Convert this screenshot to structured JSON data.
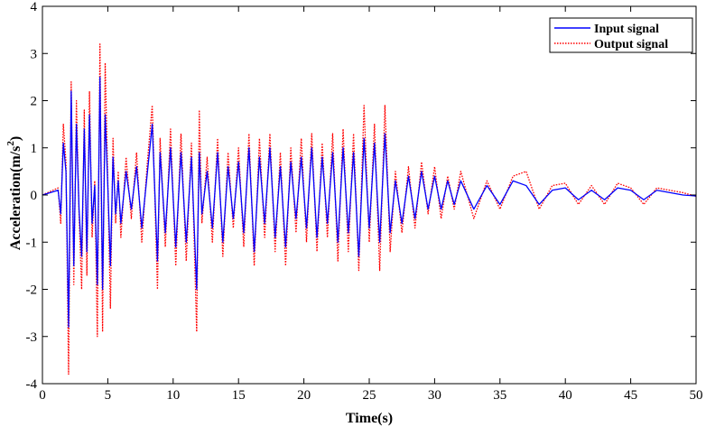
{
  "chart_data": {
    "type": "line",
    "xlabel": "Time(s)",
    "ylabel_main": "Acceleration(m/s",
    "ylabel_sup": "2",
    "ylabel_close": ")",
    "xlim": [
      0,
      50
    ],
    "ylim": [
      -4,
      4
    ],
    "xticks": [
      0,
      5,
      10,
      15,
      20,
      25,
      30,
      35,
      40,
      45,
      50
    ],
    "yticks": [
      -4,
      -3,
      -2,
      -1,
      0,
      1,
      2,
      3,
      4
    ],
    "grid": false,
    "legend_position": "top-right",
    "series": [
      {
        "name": "Input signal",
        "color": "#0000ff",
        "style": "solid",
        "x": [
          0,
          1.2,
          1.4,
          1.6,
          1.8,
          2.0,
          2.2,
          2.4,
          2.6,
          2.8,
          3.0,
          3.2,
          3.4,
          3.6,
          3.8,
          4.0,
          4.2,
          4.4,
          4.6,
          4.8,
          5.0,
          5.2,
          5.4,
          5.6,
          5.8,
          6.0,
          6.4,
          6.8,
          7.2,
          7.6,
          8.0,
          8.4,
          8.8,
          9.0,
          9.4,
          9.8,
          10.2,
          10.6,
          11.0,
          11.4,
          11.8,
          12.0,
          12.2,
          12.6,
          13.0,
          13.4,
          13.8,
          14.2,
          14.6,
          15.0,
          15.4,
          15.8,
          16.2,
          16.6,
          17.0,
          17.4,
          17.8,
          18.2,
          18.6,
          19.0,
          19.4,
          19.8,
          20.2,
          20.6,
          21.0,
          21.4,
          21.8,
          22.2,
          22.6,
          23.0,
          23.4,
          23.8,
          24.2,
          24.6,
          25.0,
          25.4,
          25.8,
          26.2,
          26.6,
          27.0,
          27.5,
          28.0,
          28.5,
          29.0,
          29.5,
          30.0,
          30.5,
          31.0,
          31.5,
          32.0,
          33.0,
          34.0,
          35.0,
          36.0,
          37.0,
          38.0,
          39.0,
          40.0,
          41.0,
          42.0,
          43.0,
          44.0,
          45.0,
          46.0,
          47.0,
          48.0,
          49.0,
          50.0
        ],
        "y": [
          0,
          0.1,
          -0.4,
          1.1,
          0.5,
          -2.8,
          2.2,
          -1.5,
          1.5,
          -0.3,
          -1.3,
          1.4,
          -1.2,
          1.7,
          -0.6,
          0.2,
          -1.9,
          2.5,
          -2.0,
          1.7,
          0.2,
          -1.5,
          0.8,
          -0.4,
          0.3,
          -0.6,
          0.5,
          -0.3,
          0.6,
          -0.7,
          0.4,
          1.5,
          -1.4,
          0.9,
          -0.8,
          1.0,
          -1.1,
          0.9,
          -1.0,
          0.8,
          -2.0,
          0.9,
          -0.4,
          0.5,
          -0.7,
          0.9,
          -1.0,
          0.6,
          -0.5,
          0.7,
          -0.8,
          1.0,
          -1.2,
          0.8,
          -0.6,
          1.0,
          -0.9,
          0.6,
          -1.1,
          0.7,
          -0.5,
          0.8,
          -0.7,
          1.0,
          -0.9,
          0.8,
          -0.6,
          0.9,
          -1.0,
          1.0,
          -0.8,
          0.9,
          -1.3,
          1.2,
          -0.7,
          1.1,
          -1.0,
          1.3,
          -0.8,
          0.3,
          -0.6,
          0.4,
          -0.5,
          0.5,
          -0.3,
          0.4,
          -0.3,
          0.3,
          -0.2,
          0.3,
          -0.3,
          0.2,
          -0.2,
          0.3,
          0.2,
          -0.2,
          0.1,
          0.15,
          -0.1,
          0.1,
          -0.1,
          0.15,
          0.1,
          -0.1,
          0.1,
          0.05,
          0.0,
          -0.02
        ]
      },
      {
        "name": "Output signal",
        "color": "#ff0000",
        "style": "dotted",
        "x": [
          0,
          1.2,
          1.4,
          1.6,
          1.8,
          2.0,
          2.2,
          2.4,
          2.6,
          2.8,
          3.0,
          3.2,
          3.4,
          3.6,
          3.8,
          4.0,
          4.2,
          4.4,
          4.6,
          4.8,
          5.0,
          5.2,
          5.4,
          5.6,
          5.8,
          6.0,
          6.4,
          6.8,
          7.2,
          7.6,
          8.0,
          8.4,
          8.8,
          9.0,
          9.4,
          9.8,
          10.2,
          10.6,
          11.0,
          11.4,
          11.8,
          12.0,
          12.2,
          12.6,
          13.0,
          13.4,
          13.8,
          14.2,
          14.6,
          15.0,
          15.4,
          15.8,
          16.2,
          16.6,
          17.0,
          17.4,
          17.8,
          18.2,
          18.6,
          19.0,
          19.4,
          19.8,
          20.2,
          20.6,
          21.0,
          21.4,
          21.8,
          22.2,
          22.6,
          23.0,
          23.4,
          23.8,
          24.2,
          24.6,
          25.0,
          25.4,
          25.8,
          26.2,
          26.6,
          27.0,
          27.5,
          28.0,
          28.5,
          29.0,
          29.5,
          30.0,
          30.5,
          31.0,
          31.5,
          32.0,
          33.0,
          34.0,
          35.0,
          36.0,
          37.0,
          38.0,
          39.0,
          40.0,
          41.0,
          42.0,
          43.0,
          44.0,
          45.0,
          46.0,
          47.0,
          48.0,
          49.0,
          50.0
        ],
        "y": [
          0,
          0.15,
          -0.6,
          1.5,
          0.7,
          -3.8,
          2.4,
          -1.9,
          2.0,
          -0.4,
          -2.0,
          1.8,
          -1.7,
          2.2,
          -0.9,
          0.3,
          -3.0,
          3.2,
          -2.9,
          2.8,
          0.3,
          -2.4,
          1.2,
          -0.6,
          0.5,
          -0.9,
          0.8,
          -0.5,
          0.9,
          -1.0,
          0.6,
          1.9,
          -2.0,
          1.2,
          -1.1,
          1.4,
          -1.5,
          1.3,
          -1.4,
          1.1,
          -2.9,
          1.8,
          -0.6,
          0.8,
          -1.0,
          1.2,
          -1.3,
          0.9,
          -0.7,
          1.0,
          -1.1,
          1.3,
          -1.5,
          1.2,
          -0.9,
          1.3,
          -1.2,
          0.9,
          -1.5,
          1.0,
          -0.8,
          1.2,
          -1.0,
          1.3,
          -1.2,
          1.1,
          -0.9,
          1.3,
          -1.4,
          1.4,
          -1.2,
          1.3,
          -1.6,
          1.9,
          -1.0,
          1.5,
          -1.6,
          1.9,
          -1.2,
          0.5,
          -0.8,
          0.6,
          -0.7,
          0.7,
          -0.4,
          0.6,
          -0.5,
          0.4,
          -0.3,
          0.5,
          -0.5,
          0.3,
          -0.3,
          0.4,
          0.5,
          -0.3,
          0.2,
          0.25,
          -0.2,
          0.2,
          -0.2,
          0.25,
          0.15,
          -0.2,
          0.15,
          0.1,
          0.05,
          -0.03
        ]
      }
    ]
  }
}
